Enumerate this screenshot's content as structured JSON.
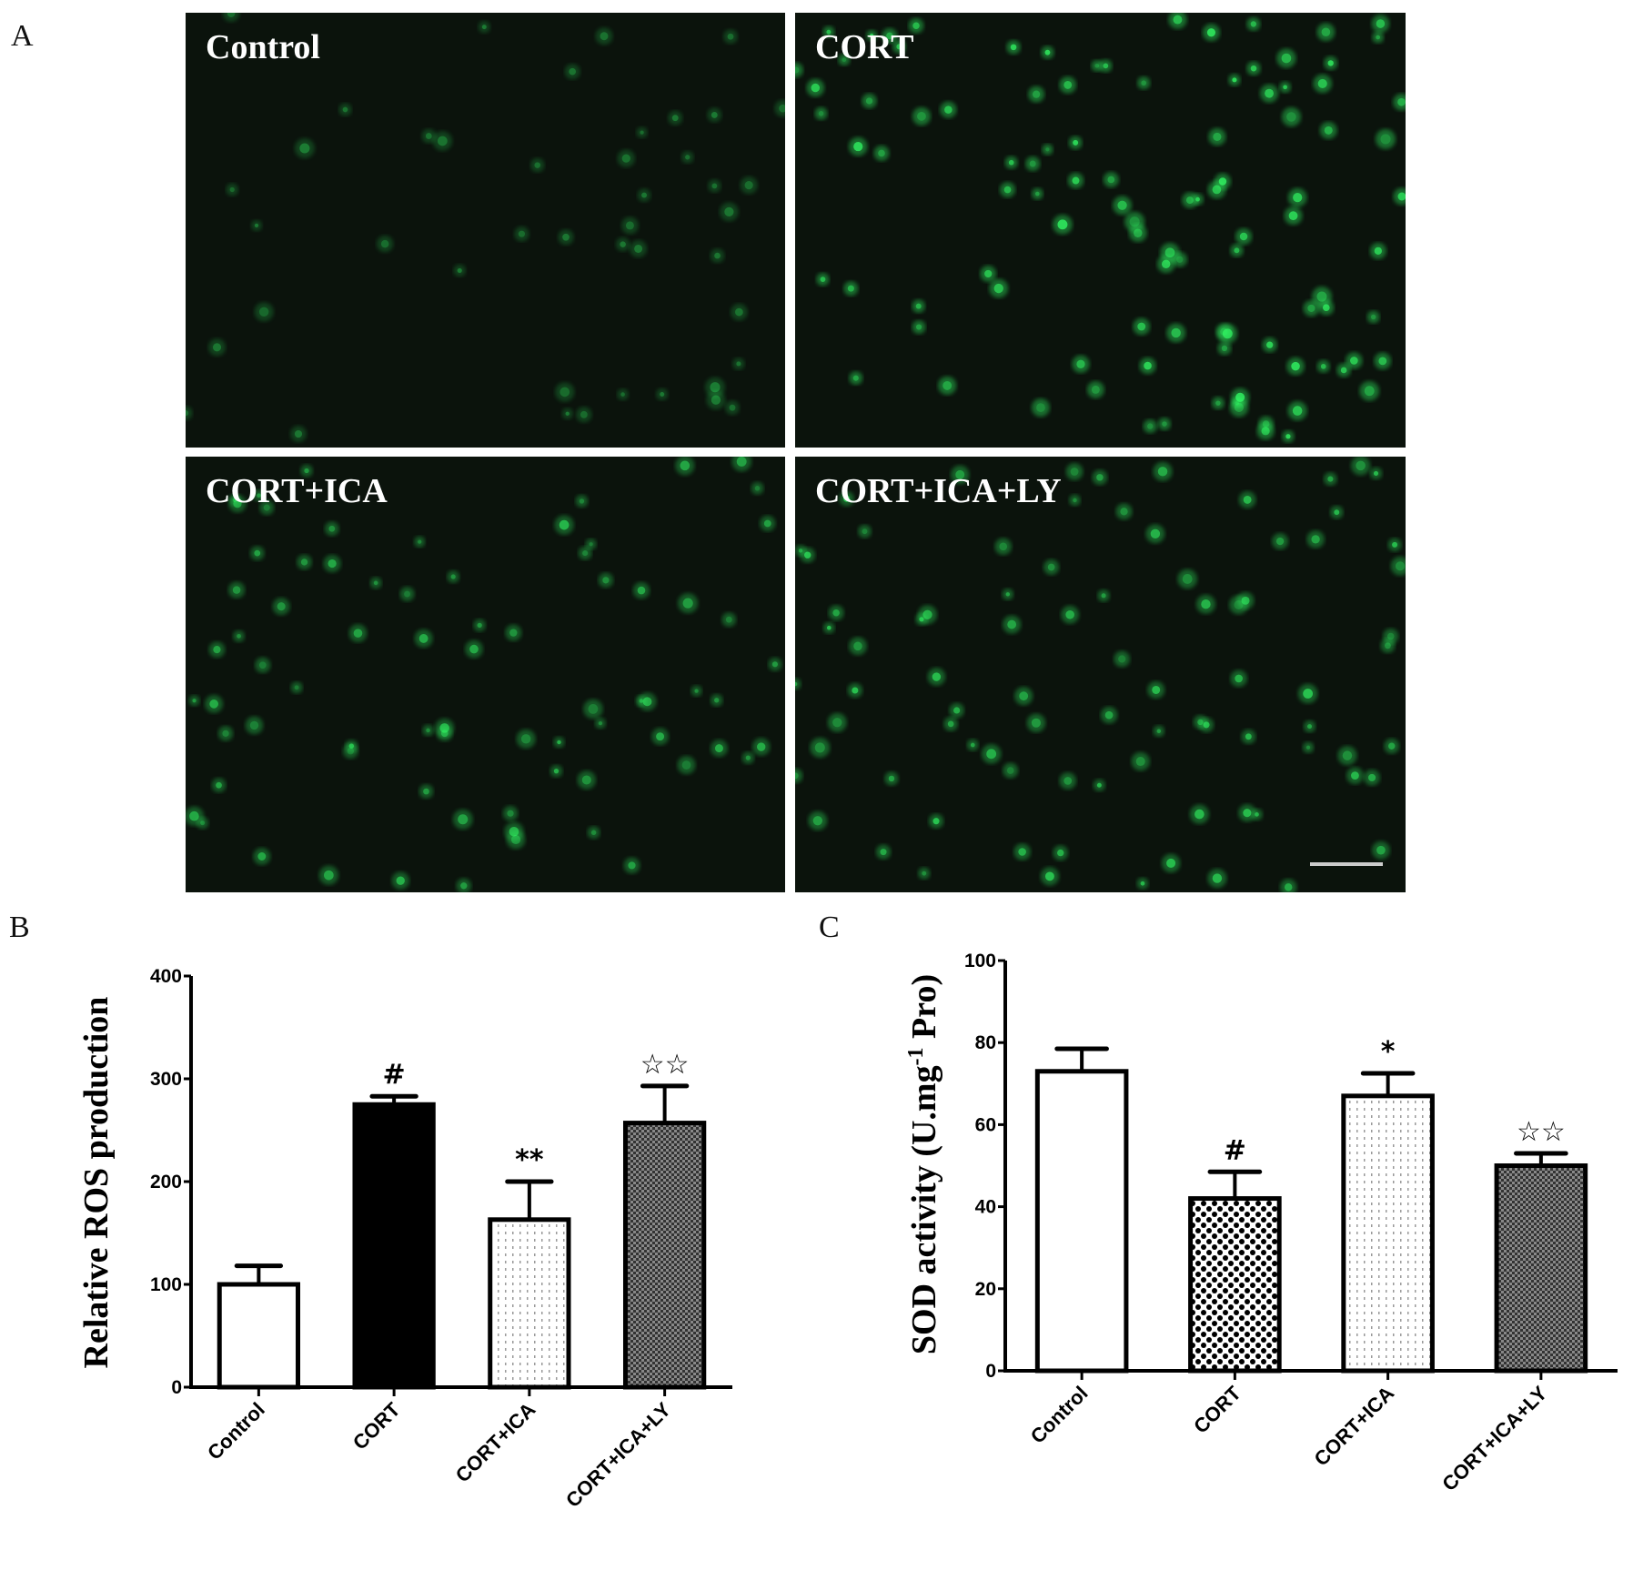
{
  "panel_a": {
    "letter": "A",
    "images": [
      {
        "label": "Control",
        "brightness": 0.15
      },
      {
        "label": "CORT",
        "brightness": 0.8
      },
      {
        "label": "CORT+ICA",
        "brightness": 0.5
      },
      {
        "label": "CORT+ICA+LY",
        "brightness": 0.6
      }
    ],
    "fluorescence_color": "#33ff66",
    "background_color": "#0b130c"
  },
  "chart_data": [
    {
      "panel_letter": "B",
      "type": "bar",
      "categories": [
        "Control",
        "CORT",
        "CORT+ICA",
        "CORT+ICA+LY"
      ],
      "values": [
        100,
        275,
        163,
        257
      ],
      "error_upper": [
        118,
        283,
        200,
        293
      ],
      "annotations": [
        "",
        "#",
        "**",
        "☆☆"
      ],
      "fills": [
        "white",
        "black",
        "dotted",
        "gray-checker"
      ],
      "xlabel": "",
      "ylabel": "Relative ROS production",
      "ylim": [
        0,
        400
      ],
      "yticks": [
        0,
        100,
        200,
        300,
        400
      ],
      "grid": false
    },
    {
      "panel_letter": "C",
      "type": "bar",
      "categories": [
        "Control",
        "CORT",
        "CORT+ICA",
        "CORT+ICA+LY"
      ],
      "values": [
        73,
        42,
        67,
        50
      ],
      "error_upper": [
        78.5,
        48.5,
        72.5,
        53
      ],
      "annotations": [
        "",
        "#",
        "*",
        "☆☆"
      ],
      "fills": [
        "white",
        "checker",
        "dotted",
        "gray-checker"
      ],
      "xlabel": "",
      "ylabel": "SOD activity (U.mg",
      "ylabel_sup": "-1",
      "ylabel_end": " Pro)",
      "ylim": [
        0,
        100
      ],
      "yticks": [
        0,
        20,
        40,
        60,
        80,
        100
      ],
      "grid": false
    }
  ]
}
